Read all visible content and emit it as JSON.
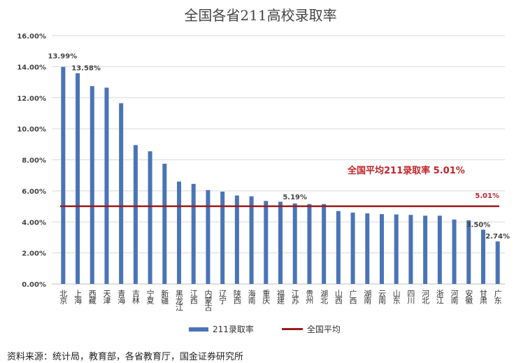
{
  "chart_data": {
    "type": "bar",
    "title": "全国各省211高校录取率",
    "categories": [
      "北京",
      "上海",
      "西藏",
      "天津",
      "青海",
      "吉林",
      "宁夏",
      "新疆",
      "黑龙江",
      "江西",
      "内蒙古",
      "辽宁",
      "陕西",
      "海南",
      "重庆",
      "福建",
      "江苏",
      "贵州",
      "湖北",
      "山西",
      "广西",
      "湖南",
      "云南",
      "山东",
      "四川",
      "河北",
      "浙江",
      "河南",
      "安徽",
      "甘肃",
      "广东"
    ],
    "series": [
      {
        "name": "211录取率",
        "values": [
          13.99,
          13.58,
          12.75,
          12.65,
          11.65,
          8.95,
          8.55,
          7.75,
          6.6,
          6.45,
          6.05,
          5.95,
          5.7,
          5.65,
          5.35,
          5.3,
          5.19,
          5.15,
          5.15,
          4.7,
          4.6,
          4.55,
          4.5,
          4.48,
          4.45,
          4.4,
          4.4,
          4.15,
          4.1,
          3.5,
          2.74
        ],
        "color": "#4a74b6"
      }
    ],
    "reference_line": {
      "name": "全国平均",
      "value": 5.01,
      "label": "5.01%",
      "color": "#9c1b1b"
    },
    "data_labels": [
      {
        "index": 0,
        "text": "13.99%"
      },
      {
        "index": 1,
        "text": "13.58%"
      },
      {
        "index": 16,
        "text": "5.19%"
      },
      {
        "index": 29,
        "text": "3.50%"
      },
      {
        "index": 30,
        "text": "2.74%"
      }
    ],
    "yticks": [
      "0.00%",
      "2.00%",
      "4.00%",
      "6.00%",
      "8.00%",
      "10.00%",
      "12.00%",
      "14.00%",
      "16.00%"
    ],
    "ylim": [
      0,
      16
    ],
    "grid": true,
    "legend_position": "bottom",
    "annotation": "全国平均211录取率 5.01%"
  },
  "legend": {
    "bar_label": "211录取率",
    "line_label": "全国平均"
  },
  "source": "资料来源：统计局，教育部，各省教育厅，国金证券研究所"
}
